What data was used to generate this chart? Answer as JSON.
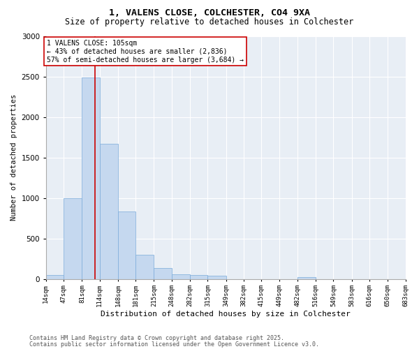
{
  "title_line1": "1, VALENS CLOSE, COLCHESTER, CO4 9XA",
  "title_line2": "Size of property relative to detached houses in Colchester",
  "xlabel": "Distribution of detached houses by size in Colchester",
  "ylabel": "Number of detached properties",
  "bin_edges": [
    14,
    47,
    81,
    114,
    148,
    181,
    215,
    248,
    282,
    315,
    349,
    382,
    415,
    449,
    482,
    516,
    549,
    583,
    616,
    650,
    683
  ],
  "bar_heights": [
    50,
    1000,
    2490,
    1670,
    830,
    300,
    130,
    60,
    50,
    40,
    0,
    0,
    0,
    0,
    25,
    0,
    0,
    0,
    0,
    0
  ],
  "bar_color": "#c5d8ef",
  "bar_edgecolor": "#7aabda",
  "property_size": 105,
  "annotation_text": "1 VALENS CLOSE: 105sqm\n← 43% of detached houses are smaller (2,836)\n57% of semi-detached houses are larger (3,684) →",
  "annotation_box_color": "#ffffff",
  "annotation_box_edgecolor": "#cc0000",
  "vline_color": "#cc0000",
  "ylim": [
    0,
    3000
  ],
  "yticks": [
    0,
    500,
    1000,
    1500,
    2000,
    2500,
    3000
  ],
  "background_color": "#e8eef5",
  "footer_line1": "Contains HM Land Registry data © Crown copyright and database right 2025.",
  "footer_line2": "Contains public sector information licensed under the Open Government Licence v3.0.",
  "title_fontsize": 9.5,
  "subtitle_fontsize": 8.5,
  "ylabel_fontsize": 7.5,
  "xlabel_fontsize": 8,
  "tick_fontsize": 6.5,
  "annotation_fontsize": 7,
  "footer_fontsize": 6
}
